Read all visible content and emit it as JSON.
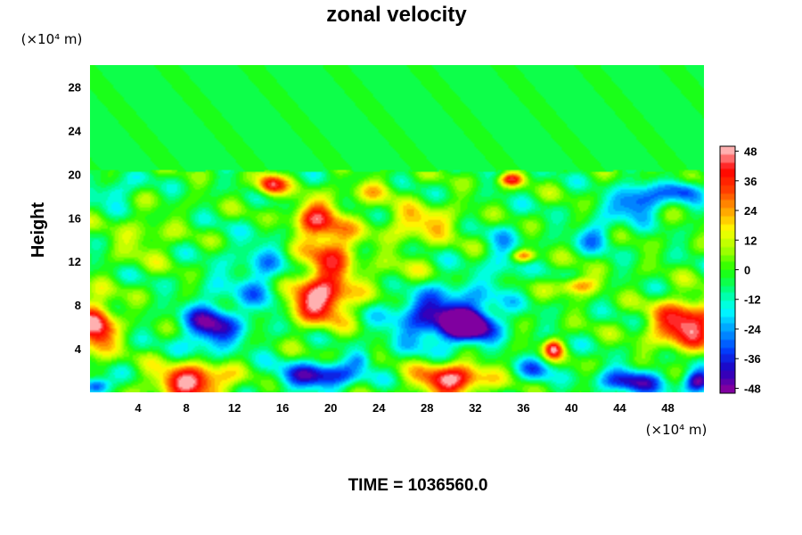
{
  "chart_data": {
    "type": "heatmap",
    "title": "zonal velocity",
    "xlabel": "",
    "ylabel": "Height",
    "x_unit": "(×10⁴ m)",
    "y_unit": "(×10⁴ m)",
    "xlim": [
      0,
      51
    ],
    "ylim": [
      0,
      30
    ],
    "x_ticks": [
      "4",
      "8",
      "12",
      "16",
      "20",
      "24",
      "28",
      "32",
      "36",
      "40",
      "44",
      "48"
    ],
    "x_tick_values": [
      4,
      8,
      12,
      16,
      20,
      24,
      28,
      32,
      36,
      40,
      44,
      48
    ],
    "y_ticks": [
      "4",
      "8",
      "12",
      "16",
      "20",
      "24",
      "28"
    ],
    "y_tick_values": [
      4,
      8,
      12,
      16,
      20,
      24,
      28
    ],
    "colorbar": {
      "min": -50,
      "max": 50,
      "ticks": [
        "48",
        "36",
        "24",
        "12",
        "0",
        "-12",
        "-24",
        "-36",
        "-48"
      ],
      "tick_values": [
        48,
        36,
        24,
        12,
        0,
        -12,
        -24,
        -36,
        -48
      ],
      "colors": [
        "#8000a0",
        "#2000c0",
        "#0040ff",
        "#00a0ff",
        "#00ffff",
        "#00ff80",
        "#20ff00",
        "#a0ff00",
        "#ffff00",
        "#ffa000",
        "#ff4000",
        "#ff0000",
        "#ffb0b0"
      ]
    },
    "background_value": -2,
    "upper_layer_value": -4,
    "upper_layer_base": 20.3,
    "features": [
      {
        "x": 0.5,
        "y": 6.0,
        "value": 48,
        "sx": 1.6,
        "sy": 2.4
      },
      {
        "x": 10.0,
        "y": 6.0,
        "value": -44,
        "sx": 2.2,
        "sy": 2.2
      },
      {
        "x": 8.5,
        "y": 1.0,
        "value": 48,
        "sx": 3.0,
        "sy": 1.6
      },
      {
        "x": 14.5,
        "y": 10.0,
        "value": -20,
        "sx": 2.0,
        "sy": 4.0
      },
      {
        "x": 19.0,
        "y": 8.5,
        "value": 46,
        "sx": 2.8,
        "sy": 2.2
      },
      {
        "x": 20.0,
        "y": 13.0,
        "value": 32,
        "sx": 2.2,
        "sy": 3.2
      },
      {
        "x": 18.5,
        "y": 16.0,
        "value": 30,
        "sx": 1.8,
        "sy": 1.6
      },
      {
        "x": 15.0,
        "y": 19.0,
        "value": 40,
        "sx": 1.2,
        "sy": 1.0
      },
      {
        "x": 19.0,
        "y": 1.5,
        "value": -44,
        "sx": 3.2,
        "sy": 1.2
      },
      {
        "x": 29.0,
        "y": 7.0,
        "value": -40,
        "sx": 4.2,
        "sy": 2.8
      },
      {
        "x": 31.5,
        "y": 6.2,
        "value": -50,
        "sx": 2.0,
        "sy": 1.4
      },
      {
        "x": 30.0,
        "y": 1.2,
        "value": 46,
        "sx": 3.0,
        "sy": 1.6
      },
      {
        "x": 27.5,
        "y": 15.5,
        "value": 22,
        "sx": 3.0,
        "sy": 1.6
      },
      {
        "x": 23.5,
        "y": 18.5,
        "value": 14,
        "sx": 2.0,
        "sy": 1.0
      },
      {
        "x": 26.0,
        "y": 10.5,
        "value": 10,
        "sx": 2.5,
        "sy": 2.0
      },
      {
        "x": 34.5,
        "y": 12.5,
        "value": -18,
        "sx": 1.6,
        "sy": 3.0
      },
      {
        "x": 36.0,
        "y": 12.5,
        "value": 32,
        "sx": 1.0,
        "sy": 0.6
      },
      {
        "x": 38.5,
        "y": 4.0,
        "value": 40,
        "sx": 0.8,
        "sy": 0.9
      },
      {
        "x": 40.5,
        "y": 9.8,
        "value": 30,
        "sx": 1.6,
        "sy": 0.8
      },
      {
        "x": 42.0,
        "y": 14.5,
        "value": -24,
        "sx": 1.6,
        "sy": 1.4
      },
      {
        "x": 45.5,
        "y": 17.5,
        "value": -40,
        "sx": 2.0,
        "sy": 1.4
      },
      {
        "x": 49.5,
        "y": 18.5,
        "value": -30,
        "sx": 1.5,
        "sy": 1.0
      },
      {
        "x": 49.5,
        "y": 6.2,
        "value": 48,
        "sx": 2.8,
        "sy": 2.2
      },
      {
        "x": 45.0,
        "y": 1.0,
        "value": -38,
        "sx": 2.8,
        "sy": 1.2
      },
      {
        "x": 50.5,
        "y": 1.0,
        "value": -48,
        "sx": 1.2,
        "sy": 1.0
      },
      {
        "x": 0.5,
        "y": 0.6,
        "value": -44,
        "sx": 1.2,
        "sy": 0.8
      },
      {
        "x": 12.0,
        "y": 11.0,
        "value": -8,
        "sx": 3.0,
        "sy": 3.0
      },
      {
        "x": 35.0,
        "y": 19.5,
        "value": 36,
        "sx": 1.0,
        "sy": 0.6
      },
      {
        "x": 22.5,
        "y": 3.0,
        "value": -18,
        "sx": 1.0,
        "sy": 0.8
      },
      {
        "x": 2.0,
        "y": 18.5,
        "value": -22,
        "sx": 1.6,
        "sy": 1.0
      },
      {
        "x": 4.5,
        "y": 14.0,
        "value": 10,
        "sx": 2.5,
        "sy": 2.0
      },
      {
        "x": 37.0,
        "y": 2.0,
        "value": -24,
        "sx": 1.4,
        "sy": 1.2
      }
    ]
  },
  "footer": {
    "time_label": "TIME = 1036560.0"
  }
}
